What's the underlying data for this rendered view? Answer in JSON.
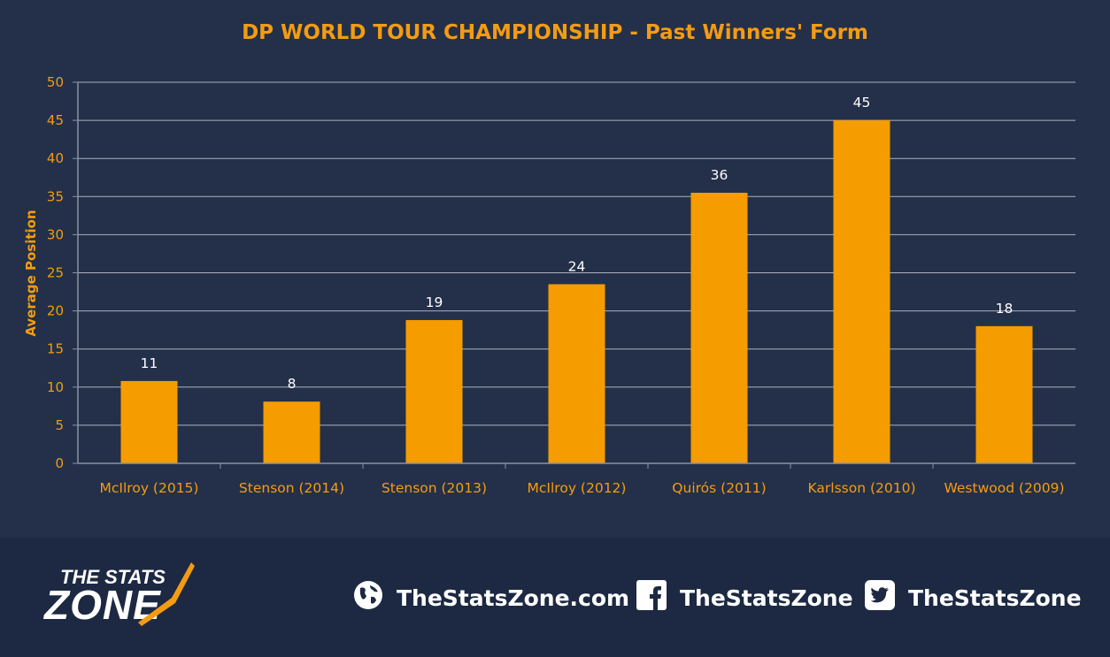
{
  "chart_data": {
    "type": "bar",
    "title": "DP WORLD TOUR CHAMPIONSHIP - Past Winners' Form",
    "xlabel": "",
    "ylabel": "Average Position",
    "categories": [
      "McIlroy (2015)",
      "Stenson (2014)",
      "Stenson (2013)",
      "McIlroy (2012)",
      "Quirós (2011)",
      "Karlsson (2010)",
      "Westwood (2009)"
    ],
    "values": [
      10.8,
      8.1,
      18.8,
      23.5,
      35.5,
      45,
      18
    ],
    "data_labels": [
      "11",
      "8",
      "19",
      "24",
      "36",
      "45",
      "18"
    ],
    "ylim": [
      0,
      50
    ],
    "yticks": [
      0,
      5,
      10,
      15,
      20,
      25,
      30,
      35,
      40,
      45,
      50
    ],
    "grid": true,
    "bar_color": "#f59c00"
  },
  "footer": {
    "logo_top": "THE STATS",
    "logo_bottom": "ZONE",
    "website": "TheStatsZone.com",
    "facebook": "TheStatsZone",
    "twitter": "TheStatsZone"
  }
}
